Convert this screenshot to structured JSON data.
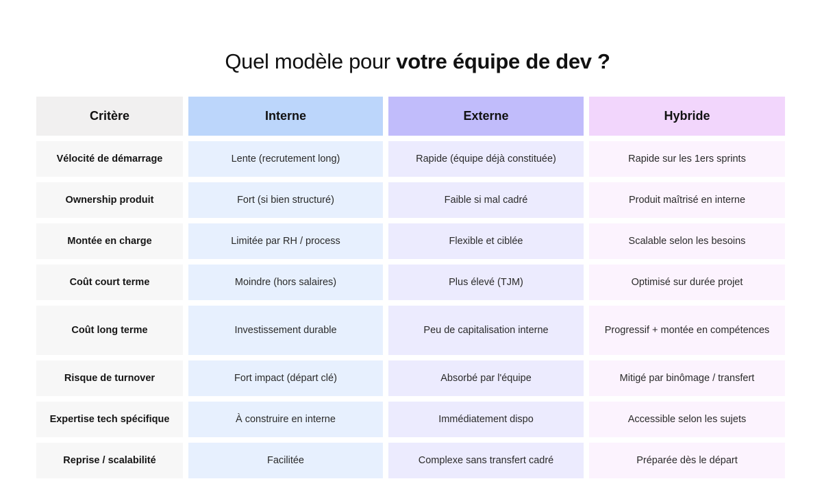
{
  "title": {
    "light": "Quel modèle pour ",
    "bold": "votre équipe de dev ?"
  },
  "table": {
    "headers": [
      "Critère",
      "Interne",
      "Externe",
      "Hybride"
    ],
    "rows": [
      [
        "Vélocité de démarrage",
        "Lente (recrutement long)",
        "Rapide (équipe déjà constituée)",
        "Rapide sur les 1ers sprints"
      ],
      [
        "Ownership produit",
        "Fort (si bien structuré)",
        "Faible si mal cadré",
        "Produit maîtrisé en interne"
      ],
      [
        "Montée en charge",
        "Limitée par RH / process",
        "Flexible et ciblée",
        "Scalable selon les besoins"
      ],
      [
        "Coût court terme",
        "Moindre (hors salaires)",
        "Plus élevé (TJM)",
        "Optimisé sur durée projet"
      ],
      [
        "Coût long terme",
        "Investissement durable",
        "Peu de capitalisation interne",
        "Progressif + montée en compétences"
      ],
      [
        "Risque de turnover",
        "Fort impact (départ clé)",
        "Absorbé par l'équipe",
        "Mitigé par binômage / transfert"
      ],
      [
        "Expertise tech spécifique",
        "À construire en interne",
        "Immédiatement dispo",
        "Accessible selon les sujets"
      ],
      [
        "Reprise / scalabilité",
        "Facilitée",
        "Complexe sans transfert cadré",
        "Préparée dès le départ"
      ]
    ]
  },
  "colors": {
    "criteria_header": "#f1f0f0",
    "internal_header": "#bcd6fb",
    "external_header": "#c1bcfb",
    "hybrid_header": "#f2d6fc"
  }
}
